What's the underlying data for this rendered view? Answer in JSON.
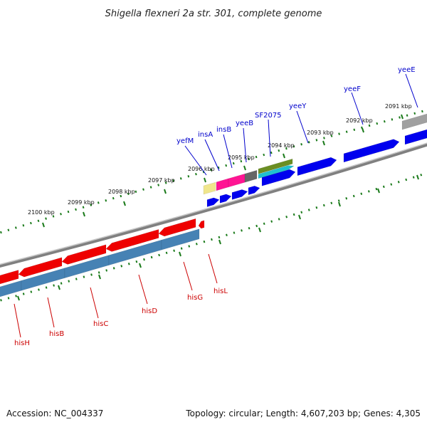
{
  "title": "Shigella flexneri 2a str. 301, complete genome",
  "footer": {
    "accession": "Accession: NC_004337",
    "topology": "Topology: circular; Length: 4,607,203 bp; Genes: 4,305"
  },
  "colors": {
    "forward_gene": "#0000ee",
    "reverse_gene": "#ee0000",
    "reverse_cds": "#4682b4",
    "backbone": "#808080",
    "tick": "#1a7a1a",
    "label_top": "#0000cc",
    "label_bottom": "#cc0000"
  },
  "kbp_labels": [
    "2100 kbp",
    "2099 kbp",
    "2098 kbp",
    "2097 kbp",
    "2096 kbp",
    "2095 kbp",
    "2094 kbp",
    "2093 kbp",
    "2092 kbp",
    "2091 kbp"
  ],
  "gene_labels_top": [
    "yefM",
    "insA",
    "insB",
    "yeeB",
    "SF2075",
    "yeeY",
    "yeeF",
    "yeeE"
  ],
  "gene_labels_bottom": [
    "hisH",
    "hisB",
    "hisC",
    "hisD",
    "hisG",
    "hisL"
  ]
}
